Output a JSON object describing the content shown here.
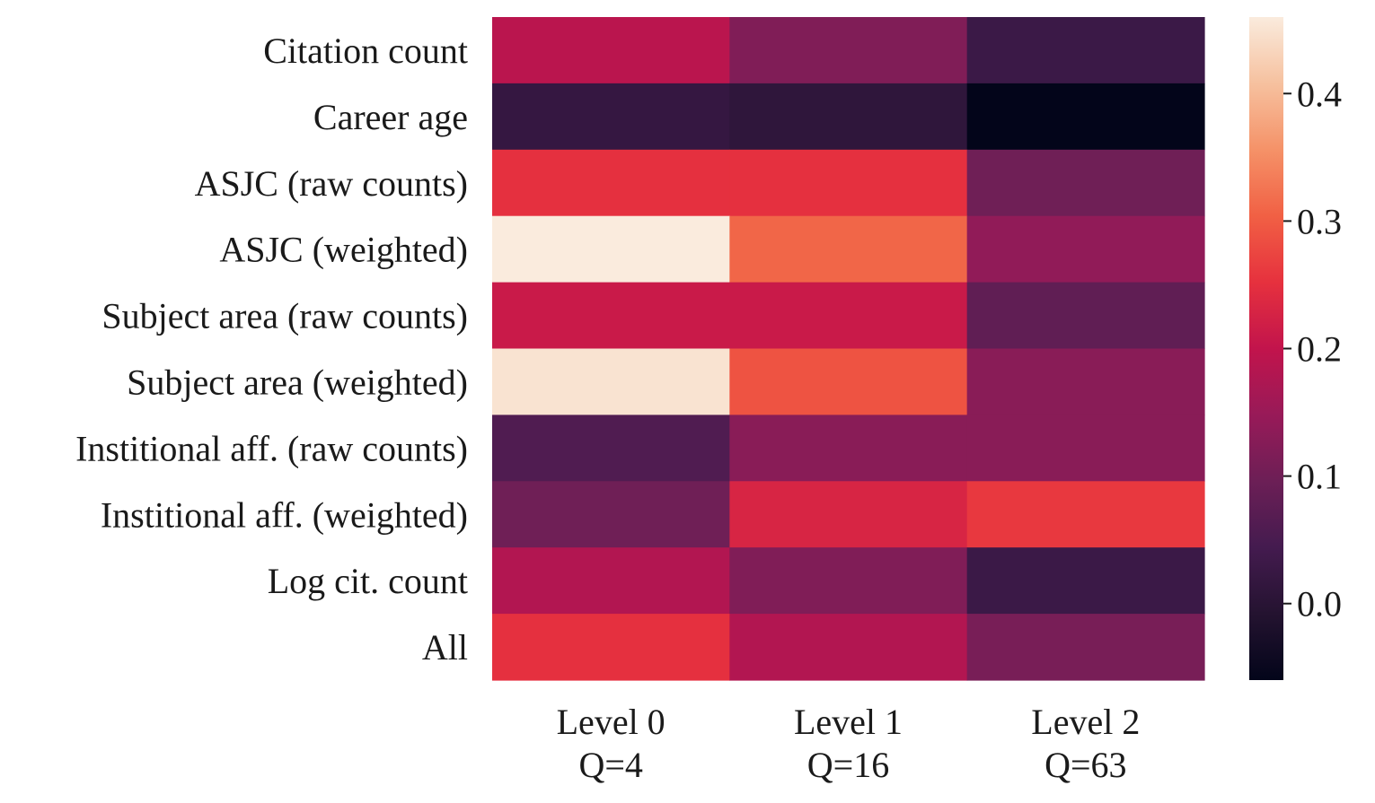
{
  "chart_data": {
    "type": "heatmap",
    "rows": [
      "Citation count",
      "Career age",
      "ASJC (raw counts)",
      "ASJC (weighted)",
      "Subject area (raw counts)",
      "Subject area (weighted)",
      "Institional aff. (raw counts)",
      "Institional aff. (weighted)",
      "Log cit. count",
      "All"
    ],
    "columns": [
      {
        "label": "Level 0",
        "sub": "Q=4"
      },
      {
        "label": "Level 1",
        "sub": "Q=16"
      },
      {
        "label": "Level 2",
        "sub": "Q=63"
      }
    ],
    "values": [
      [
        0.19,
        0.12,
        0.03
      ],
      [
        0.02,
        0.01,
        -0.06
      ],
      [
        0.25,
        0.25,
        0.1
      ],
      [
        0.46,
        0.31,
        0.14
      ],
      [
        0.21,
        0.21,
        0.08
      ],
      [
        0.45,
        0.29,
        0.13
      ],
      [
        0.06,
        0.13,
        0.13
      ],
      [
        0.1,
        0.23,
        0.26
      ],
      [
        0.18,
        0.12,
        0.03
      ],
      [
        0.25,
        0.18,
        0.11
      ]
    ],
    "colorbar": {
      "min": -0.06,
      "max": 0.46,
      "ticks": [
        "0.0",
        "0.1",
        "0.2",
        "0.3",
        "0.4"
      ],
      "tick_values": [
        0.0,
        0.1,
        0.2,
        0.3,
        0.4
      ],
      "colormap": "rocket"
    }
  }
}
